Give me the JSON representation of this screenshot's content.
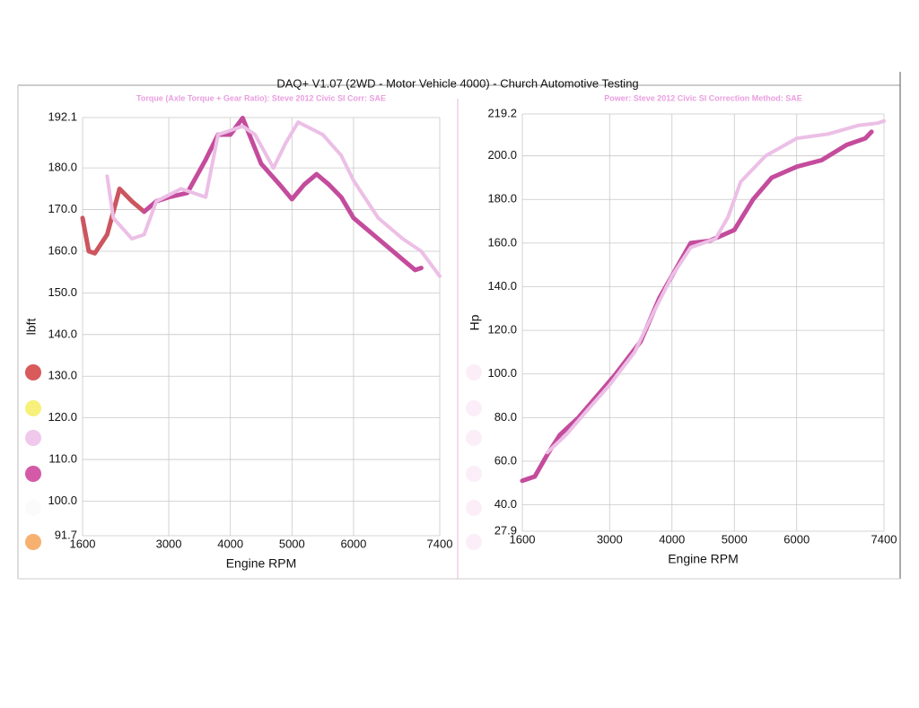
{
  "title": "DAQ+ V1.07 (2WD - Motor Vehicle 4000) - Church Automotive Testing",
  "chart_data": [
    {
      "type": "line",
      "subtitle": "Torque (Axle Torque + Gear Ratio): Steve 2012 Civic SI     Corr: SAE",
      "xlabel": "Engine RPM",
      "ylabel": "lbft",
      "xlim": [
        1600,
        7400
      ],
      "ylim": [
        91.7,
        192.1
      ],
      "xticks": [
        1600,
        3000,
        4000,
        5000,
        6000,
        7400
      ],
      "yticks": [
        91.7,
        {
          "value": 100,
          "label": "100.0"
        },
        {
          "value": 110,
          "label": "110.0"
        },
        {
          "value": 120,
          "label": "120.0"
        },
        {
          "value": 130,
          "label": "130.0"
        },
        {
          "value": 140,
          "label": "140.0"
        },
        {
          "value": 150,
          "label": "150.0"
        },
        {
          "value": 160,
          "label": "160.0"
        },
        {
          "value": 170,
          "label": "170.0"
        },
        {
          "value": 180,
          "label": "180.0"
        },
        192.1
      ],
      "grid": true,
      "series": [
        {
          "color": "#cc5560",
          "width": 5,
          "x": [
            1600,
            1700,
            1800,
            2000,
            2200,
            2400,
            2600
          ],
          "values": [
            168,
            160,
            159.5,
            164,
            175,
            172,
            169.5
          ]
        },
        {
          "color": "#c44c9c",
          "width": 5,
          "x": [
            2600,
            2800,
            3000,
            3300,
            3600,
            3800,
            4000,
            4200,
            4500,
            4800,
            5000,
            5200,
            5400,
            5600,
            5800,
            6000,
            6400,
            6800,
            7000,
            7100
          ],
          "values": [
            169.5,
            172,
            173,
            174,
            182,
            188,
            188,
            192,
            181,
            176,
            172.5,
            176,
            178.5,
            176,
            173,
            168,
            163,
            158,
            155.5,
            156
          ]
        },
        {
          "color": "#ecbfe6",
          "width": 4,
          "x": [
            2000,
            2100,
            2400,
            2600,
            2800,
            3200,
            3600,
            3800,
            4000,
            4200,
            4400,
            4700,
            4900,
            5100,
            5500,
            5800,
            6000,
            6400,
            6800,
            7100,
            7400
          ],
          "values": [
            178,
            168,
            163,
            164,
            172,
            175,
            173,
            188,
            189,
            190,
            188,
            180,
            186,
            191,
            188,
            183,
            177,
            168,
            163,
            160,
            154
          ]
        }
      ]
    },
    {
      "type": "line",
      "subtitle": "Power: Steve 2012 Civic SI     Correction Method: SAE",
      "xlabel": "Engine RPM",
      "ylabel": "Hp",
      "xlim": [
        1600,
        7400
      ],
      "ylim": [
        27.9,
        219.2
      ],
      "xticks": [
        1600,
        3000,
        4000,
        5000,
        6000,
        7400
      ],
      "yticks": [
        27.9,
        {
          "value": 40,
          "label": "40.0"
        },
        {
          "value": 60,
          "label": "60.0"
        },
        {
          "value": 80,
          "label": "80.0"
        },
        {
          "value": 100,
          "label": "100.0"
        },
        {
          "value": 120,
          "label": "120.0"
        },
        {
          "value": 140,
          "label": "140.0"
        },
        {
          "value": 160,
          "label": "160.0"
        },
        {
          "value": 180,
          "label": "180.0"
        },
        {
          "value": 200,
          "label": "200.0"
        },
        219.2
      ],
      "grid": true,
      "series": [
        {
          "color": "#c44c9c",
          "width": 5,
          "x": [
            1600,
            1800,
            2000,
            2200,
            2500,
            2800,
            3100,
            3500,
            3800,
            4100,
            4300,
            4600,
            5000,
            5300,
            5600,
            6000,
            6400,
            6800,
            7100,
            7200
          ],
          "values": [
            51,
            53,
            63,
            72,
            80,
            90,
            100,
            115,
            135,
            150,
            160,
            161,
            166,
            180,
            190,
            195,
            198,
            205,
            208,
            211
          ]
        },
        {
          "color": "#ecbfe6",
          "width": 4,
          "x": [
            2000,
            2300,
            2600,
            3000,
            3400,
            3700,
            4000,
            4300,
            4700,
            4900,
            5100,
            5500,
            6000,
            6500,
            7000,
            7300,
            7400
          ],
          "values": [
            64,
            72,
            82,
            95,
            110,
            128,
            145,
            158,
            162,
            172,
            188,
            200,
            208,
            210,
            214,
            215,
            216
          ]
        }
      ]
    }
  ]
}
